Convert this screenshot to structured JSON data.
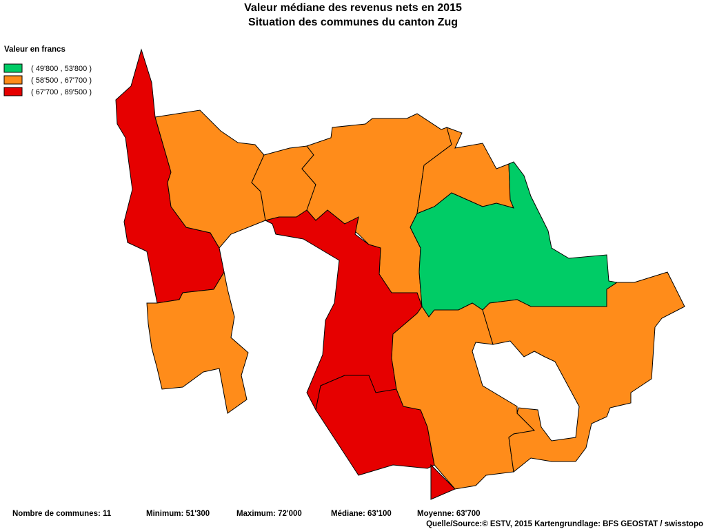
{
  "title": "Valeur médiane des revenus nets en 2015",
  "subtitle": "Situation des communes du canton Zug",
  "legend": {
    "title": "Valeur en francs",
    "items": [
      {
        "label": "( 49'800 , 53'800 )",
        "color": "#00cc66"
      },
      {
        "label": "( 58'500 , 67'700 )",
        "color": "#ff8c1a"
      },
      {
        "label": "( 67'700 , 89'500 )",
        "color": "#e60000"
      }
    ]
  },
  "footer": {
    "count": "Nombre de communes: 11",
    "minimum": "Minimum: 51'300",
    "maximum": "Maximum: 72'000",
    "median": "Médiane: 63'100",
    "mean": "Moyenne: 63'700",
    "source": "Quelle/Source:© ESTV, 2015 Kartengrundlage: BFS GEOSTAT / swisstopo"
  }
}
